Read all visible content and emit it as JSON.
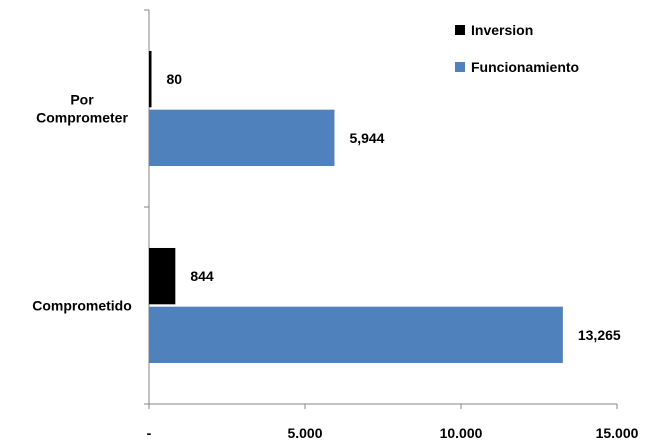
{
  "chart_data": {
    "type": "bar",
    "orientation": "horizontal",
    "title": "",
    "xlabel": "",
    "ylabel": "",
    "xlim": [
      0,
      15000
    ],
    "x_ticks": [
      0,
      5000,
      10000,
      15000
    ],
    "x_tick_labels": [
      "-",
      "5.000",
      "10.000",
      "15.000"
    ],
    "grid": false,
    "legend_position": "top-right",
    "categories": [
      {
        "lines": [
          "Por",
          "Comprometer"
        ]
      },
      {
        "lines": [
          "Comprometido"
        ]
      }
    ],
    "series": [
      {
        "name": "Inversion",
        "color": "#000000",
        "values": [
          80,
          844
        ],
        "labels": [
          "80",
          "844"
        ]
      },
      {
        "name": "Funcionamiento",
        "color": "#4f81bd",
        "values": [
          5944,
          13265
        ],
        "labels": [
          "5,944",
          "13,265"
        ]
      }
    ]
  }
}
